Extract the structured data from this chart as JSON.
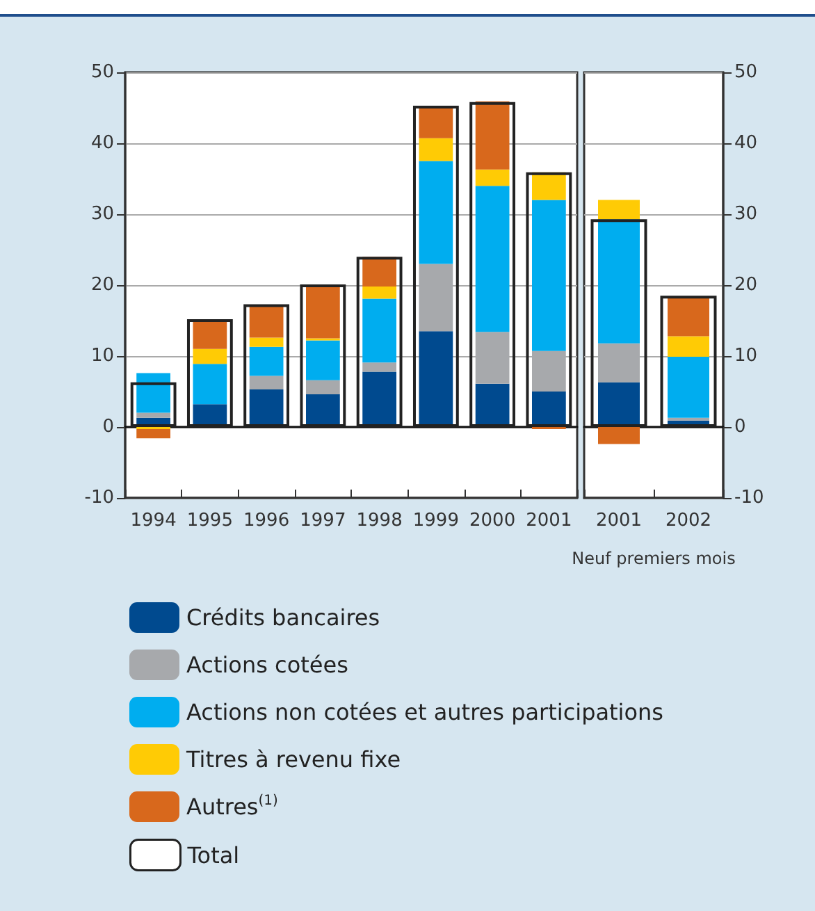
{
  "chart_data": [
    {
      "type": "bar",
      "stacked": true,
      "categories": [
        "1994",
        "1995",
        "1996",
        "1997",
        "1998",
        "1999",
        "2000",
        "2001"
      ],
      "ylim": [
        -10,
        50
      ],
      "yticks": [
        -10,
        0,
        10,
        20,
        30,
        40,
        50
      ],
      "grid": "y",
      "legend": "bottom",
      "series": [
        {
          "name": "Crédits bancaires",
          "color": "#004a8f",
          "values": [
            1.3,
            3.2,
            5.3,
            4.6,
            7.8,
            13.5,
            6.1,
            5.0
          ]
        },
        {
          "name": "Actions cotées",
          "color": "#a7a9ac",
          "values": [
            0.7,
            null,
            1.9,
            2.0,
            1.3,
            9.5,
            7.3,
            5.7
          ]
        },
        {
          "name": "Actions non cotées et autres participations",
          "color": "#00adef",
          "values": [
            5.6,
            5.7,
            4.1,
            5.6,
            9.0,
            14.5,
            20.6,
            21.3
          ]
        },
        {
          "name": "Titres à revenu fixe",
          "color": "#ffcb05",
          "values": [
            -0.3,
            2.1,
            1.3,
            0.3,
            1.7,
            3.2,
            2.3,
            3.9
          ]
        },
        {
          "name": "Autres$^{(1)}$",
          "color": "#d8681c",
          "values": [
            -1.3,
            4.1,
            4.6,
            7.6,
            4.2,
            4.6,
            9.6,
            -0.3
          ]
        }
      ]
    },
    {
      "type": "bar",
      "stacked": true,
      "categories": [
        "2001",
        "2002"
      ],
      "xlabel": "Neuf premiers mois",
      "y2lim": [
        -10,
        50
      ],
      "y2ticks": [
        -10,
        0,
        10,
        20,
        30,
        40,
        50
      ],
      "grid": "y",
      "series": [
        {
          "color": "#004a8f",
          "axis": "y2",
          "values": [
            6.3,
            0.9
          ]
        },
        {
          "color": "#a7a9ac",
          "axis": "y2",
          "values": [
            5.5,
            0.4
          ]
        },
        {
          "color": "#00adef",
          "axis": "y2",
          "values": [
            17.5,
            8.6
          ]
        },
        {
          "color": "#ffcb05",
          "axis": "y2",
          "values": [
            2.7,
            2.9
          ]
        },
        {
          "color": "#d8681c",
          "axis": "y2",
          "values": [
            -2.4,
            5.6
          ]
        }
      ]
    },
    {
      "type": "bar",
      "categories": [
        "1994",
        "1995",
        "1996",
        "1997",
        "1998",
        "1999",
        "2000",
        "2001"
      ],
      "ylim": [
        -10,
        50
      ],
      "tick_labels": false,
      "legend": "bottom",
      "series": [
        {
          "name": "Total",
          "color": "#222222",
          "values": [
            6.3,
            15.2,
            17.3,
            20.1,
            24.0,
            45.3,
            45.8,
            35.9
          ]
        }
      ]
    },
    {
      "type": "bar",
      "categories": [
        "2001",
        "2002"
      ],
      "y2lim": [
        -10,
        50
      ],
      "tick_labels": false,
      "series": [
        {
          "color": "#222222",
          "axis": "y2",
          "values": [
            29.3,
            18.5
          ]
        }
      ]
    }
  ]
}
